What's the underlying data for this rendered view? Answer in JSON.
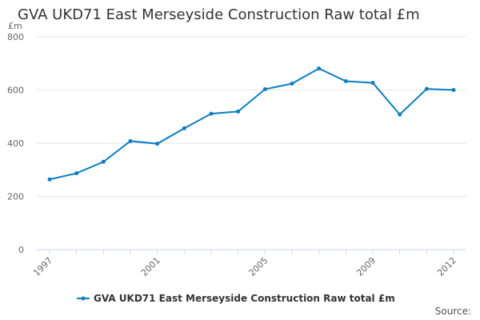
{
  "chart_data": {
    "type": "line",
    "title": "GVA UKD71 East Merseyside Construction Raw total £m",
    "ylabel": "£m",
    "xlabel": "",
    "x": [
      1997,
      1998,
      1999,
      2000,
      2001,
      2002,
      2003,
      2004,
      2005,
      2006,
      2007,
      2008,
      2009,
      2010,
      2011,
      2012
    ],
    "series": [
      {
        "name": "GVA UKD71 East Merseyside Construction Raw total £m",
        "values": [
          264,
          287,
          330,
          408,
          398,
          456,
          511,
          519,
          603,
          624,
          681,
          633,
          627,
          508,
          604,
          600
        ],
        "color": "#0a7ec2"
      }
    ],
    "ylim": [
      0,
      800
    ],
    "yticks": [
      "0",
      "200",
      "400",
      "600",
      "800"
    ],
    "xticks": [
      "1997",
      "2001",
      "2005",
      "2009",
      "2012"
    ],
    "grid": true,
    "legend": "bottom-center"
  },
  "source_label": "Source:"
}
